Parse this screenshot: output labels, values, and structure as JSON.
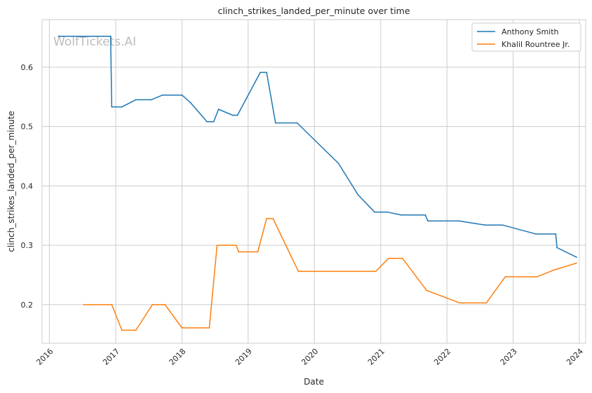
{
  "chart_data": {
    "type": "line",
    "title": "clinch_strikes_landed_per_minute over time",
    "xlabel": "Date",
    "ylabel": "clinch_strikes_landed_per_minute",
    "watermark": "WolfTickets.AI",
    "x_ticks": [
      "2016",
      "2017",
      "2018",
      "2019",
      "2020",
      "2021",
      "2022",
      "2023",
      "2024"
    ],
    "y_ticks": [
      "0.2",
      "0.3",
      "0.4",
      "0.5",
      "0.6"
    ],
    "xlim": [
      "2015-11-22",
      "2024-02-05"
    ],
    "ylim": [
      0.135,
      0.68
    ],
    "grid": true,
    "legend_position": "top-right",
    "series": [
      {
        "name": "Anthony Smith",
        "color": "#1f77b4",
        "points": [
          [
            "2016-02-20",
            0.652
          ],
          [
            "2016-12-04",
            0.652
          ],
          [
            "2016-12-10",
            0.533
          ],
          [
            "2017-02-04",
            0.533
          ],
          [
            "2017-04-22",
            0.545
          ],
          [
            "2017-07-16",
            0.545
          ],
          [
            "2017-09-16",
            0.553
          ],
          [
            "2018-01-01",
            0.553
          ],
          [
            "2018-02-18",
            0.54
          ],
          [
            "2018-05-19",
            0.508
          ],
          [
            "2018-06-25",
            0.508
          ],
          [
            "2018-07-22",
            0.529
          ],
          [
            "2018-10-08",
            0.519
          ],
          [
            "2018-11-03",
            0.519
          ],
          [
            "2019-03-09",
            0.591
          ],
          [
            "2019-04-13",
            0.591
          ],
          [
            "2019-06-01",
            0.506
          ],
          [
            "2019-09-28",
            0.506
          ],
          [
            "2020-05-13",
            0.438
          ],
          [
            "2020-08-29",
            0.385
          ],
          [
            "2020-11-28",
            0.356
          ],
          [
            "2021-02-06",
            0.356
          ],
          [
            "2021-04-24",
            0.351
          ],
          [
            "2021-09-04",
            0.351
          ],
          [
            "2021-09-18",
            0.341
          ],
          [
            "2022-03-08",
            0.341
          ],
          [
            "2022-07-30",
            0.334
          ],
          [
            "2022-11-05",
            0.334
          ],
          [
            "2023-05-06",
            0.319
          ],
          [
            "2023-08-24",
            0.319
          ],
          [
            "2023-08-31",
            0.296
          ],
          [
            "2023-12-16",
            0.28
          ]
        ]
      },
      {
        "name": "Khalil Rountree Jr.",
        "color": "#ff7f0e",
        "points": [
          [
            "2016-07-08",
            0.2
          ],
          [
            "2016-12-10",
            0.2
          ],
          [
            "2017-02-04",
            0.157
          ],
          [
            "2017-04-22",
            0.157
          ],
          [
            "2017-07-22",
            0.2
          ],
          [
            "2017-09-30",
            0.2
          ],
          [
            "2018-01-01",
            0.161
          ],
          [
            "2018-06-01",
            0.161
          ],
          [
            "2018-07-14",
            0.3
          ],
          [
            "2018-10-27",
            0.3
          ],
          [
            "2018-11-10",
            0.289
          ],
          [
            "2019-02-23",
            0.289
          ],
          [
            "2019-04-13",
            0.345
          ],
          [
            "2019-05-18",
            0.345
          ],
          [
            "2019-10-05",
            0.256
          ],
          [
            "2020-12-05",
            0.256
          ],
          [
            "2021-02-13",
            0.278
          ],
          [
            "2021-05-01",
            0.278
          ],
          [
            "2021-09-11",
            0.224
          ],
          [
            "2022-03-12",
            0.203
          ],
          [
            "2022-08-06",
            0.203
          ],
          [
            "2022-11-19",
            0.247
          ],
          [
            "2023-05-13",
            0.247
          ],
          [
            "2023-08-19",
            0.259
          ],
          [
            "2023-09-02",
            0.26
          ],
          [
            "2023-12-16",
            0.27
          ]
        ]
      }
    ]
  }
}
